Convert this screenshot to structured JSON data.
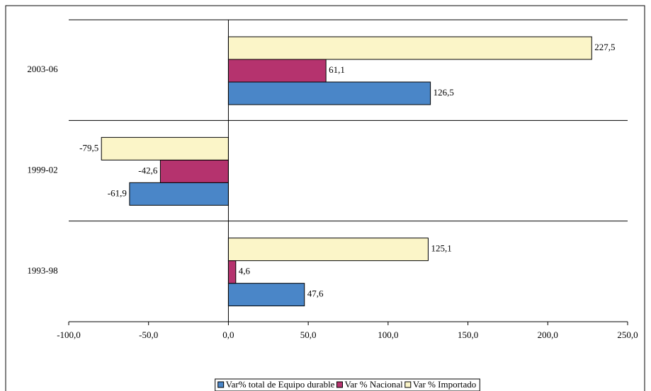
{
  "chart_data": {
    "type": "bar",
    "orientation": "horizontal",
    "categories": [
      "2003-06",
      "1999-02",
      "1993-98"
    ],
    "series": [
      {
        "name": "Var% total de Equipo durable",
        "color": "#4a86c8",
        "values": [
          126.5,
          -61.9,
          47.6
        ],
        "value_labels": [
          "126,5",
          "-61,9",
          "47,6"
        ]
      },
      {
        "name": "Var % Nacional",
        "color": "#b5336e",
        "values": [
          61.1,
          -42.6,
          4.6
        ],
        "value_labels": [
          "61,1",
          "-42,6",
          "4,6"
        ]
      },
      {
        "name": "Var % Importado",
        "color": "#fbf5c8",
        "values": [
          227.5,
          -79.5,
          125.1
        ],
        "value_labels": [
          "227,5",
          "-79,5",
          "125,1"
        ]
      }
    ],
    "xlim": [
      -100,
      250
    ],
    "xticks": [
      {
        "value": -100,
        "label": "-100,0"
      },
      {
        "value": -50,
        "label": "-50,0"
      },
      {
        "value": 0,
        "label": "0,0"
      },
      {
        "value": 50,
        "label": "50,0"
      },
      {
        "value": 100,
        "label": "100,0"
      },
      {
        "value": 150,
        "label": "150,0"
      },
      {
        "value": 200,
        "label": "200,0"
      },
      {
        "value": 250,
        "label": "250,0"
      }
    ],
    "legend": "bottom"
  }
}
